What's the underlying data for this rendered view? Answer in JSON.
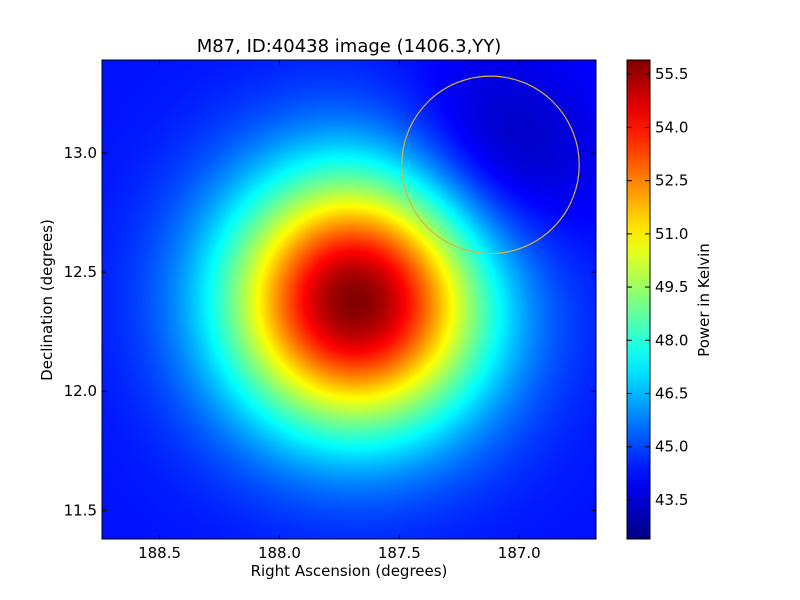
{
  "chart_data": {
    "type": "heatmap",
    "title": "M87, ID:40438 image (1406.3,YY)",
    "xlabel": "Right Ascension (degrees)",
    "ylabel": "Declination (degrees)",
    "colorbar_label": "Power in Kelvin",
    "colormap": "jet",
    "xlim": [
      188.74,
      186.68
    ],
    "ylim": [
      11.38,
      13.39
    ],
    "x_ticks": [
      {
        "value": 188.5,
        "label": "188.5"
      },
      {
        "value": 188.0,
        "label": "188.0"
      },
      {
        "value": 187.5,
        "label": "187.5"
      },
      {
        "value": 187.0,
        "label": "187.0"
      }
    ],
    "y_ticks": [
      {
        "value": 13.0,
        "label": "13.0"
      },
      {
        "value": 12.5,
        "label": "12.5"
      },
      {
        "value": 12.0,
        "label": "12.0"
      },
      {
        "value": 11.5,
        "label": "11.5"
      }
    ],
    "colorbar_range": [
      42.4,
      55.9
    ],
    "colorbar_ticks": [
      {
        "value": 55.5,
        "label": "55.5"
      },
      {
        "value": 54.0,
        "label": "54.0"
      },
      {
        "value": 52.5,
        "label": "52.5"
      },
      {
        "value": 51.0,
        "label": "51.0"
      },
      {
        "value": 49.5,
        "label": "49.5"
      },
      {
        "value": 48.0,
        "label": "48.0"
      },
      {
        "value": 46.5,
        "label": "46.5"
      },
      {
        "value": 45.0,
        "label": "45.0"
      },
      {
        "value": 43.5,
        "label": "43.5"
      }
    ],
    "peak": {
      "ra": 187.68,
      "dec": 12.38,
      "value": 55.9
    },
    "background_value": 44.3,
    "source_fwhm_deg": 0.9,
    "marker_circle": {
      "ra": 187.12,
      "dec": 12.95,
      "radius_deg": 0.37,
      "color": "#d6b63a"
    }
  }
}
